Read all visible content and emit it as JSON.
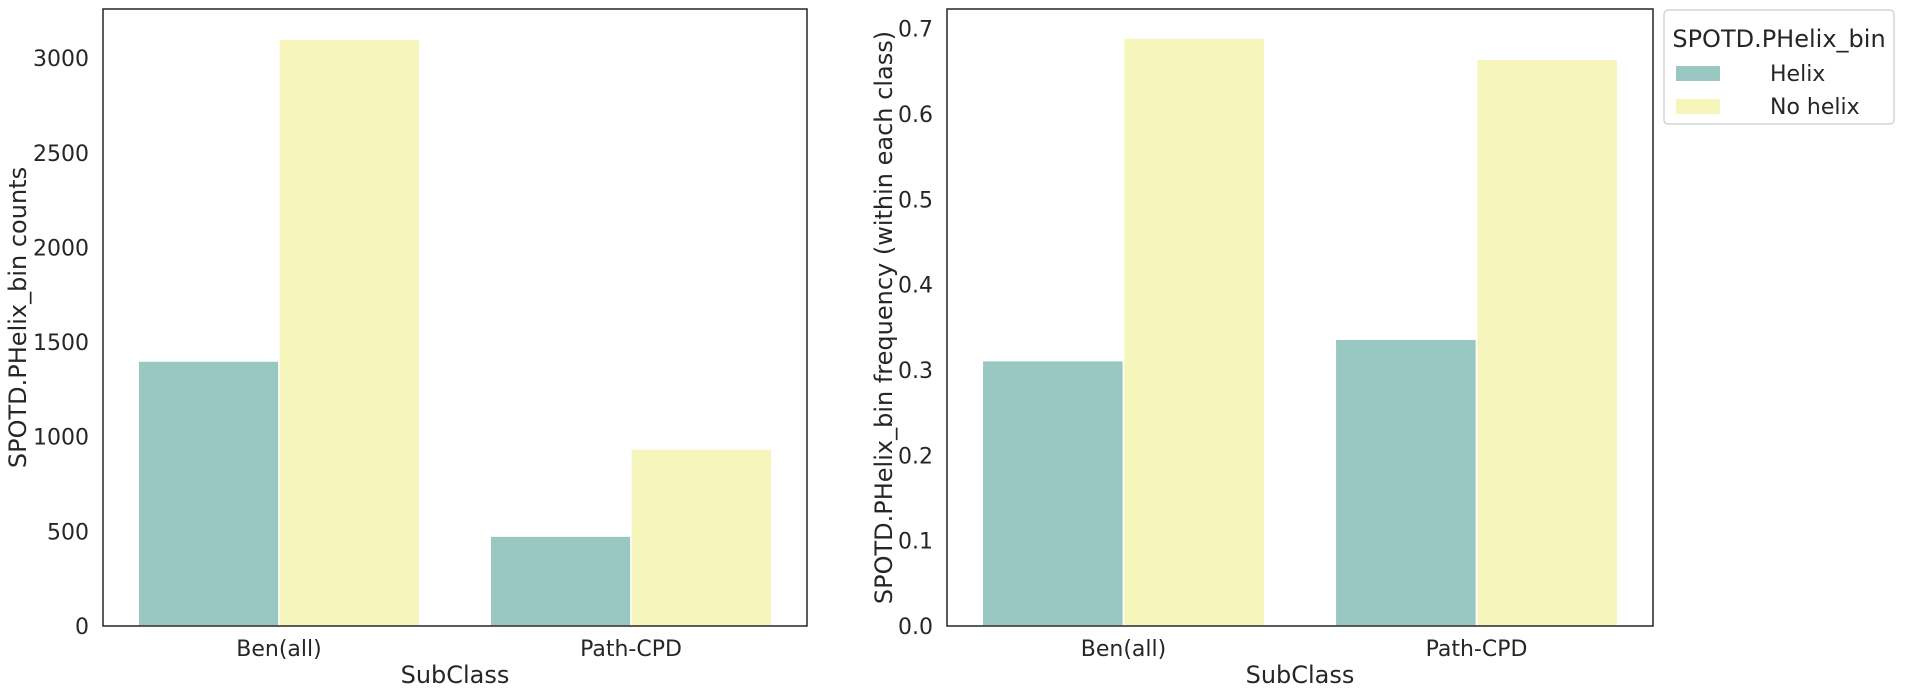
{
  "colors": {
    "series": [
      "#98c8c1",
      "#f5f5bc"
    ],
    "axis": "#262626",
    "bar_edge": "#ffffff"
  },
  "legend": {
    "title": "SPOTD.PHelix_bin",
    "placement": "upper-right-outside",
    "entries": [
      "Helix",
      "No helix"
    ]
  },
  "chart_data": [
    {
      "type": "bar",
      "title": "",
      "xlabel": "SubClass",
      "ylabel": "SPOTD.PHelix_bin counts",
      "categories": [
        "Ben(all)",
        "Path-CPD"
      ],
      "series": [
        {
          "name": "Helix",
          "values": [
            1400,
            475
          ]
        },
        {
          "name": "No helix",
          "values": [
            3100,
            935
          ]
        }
      ],
      "ylim": [
        0,
        3260
      ],
      "yticks": [
        0,
        500,
        1000,
        1500,
        2000,
        2500,
        3000
      ],
      "ytick_labels": [
        "0",
        "500",
        "1000",
        "1500",
        "2000",
        "2500",
        "3000"
      ],
      "grid": false
    },
    {
      "type": "bar",
      "title": "",
      "xlabel": "SubClass",
      "ylabel": "SPOTD.PHelix_bin frequency (within each class)",
      "categories": [
        "Ben(all)",
        "Path-CPD"
      ],
      "series": [
        {
          "name": "Helix",
          "values": [
            0.311,
            0.336
          ]
        },
        {
          "name": "No helix",
          "values": [
            0.689,
            0.664
          ]
        }
      ],
      "ylim": [
        0,
        0.723
      ],
      "yticks": [
        0.0,
        0.1,
        0.2,
        0.3,
        0.4,
        0.5,
        0.6,
        0.7
      ],
      "ytick_labels": [
        "0.0",
        "0.1",
        "0.2",
        "0.3",
        "0.4",
        "0.5",
        "0.6",
        "0.7"
      ],
      "grid": false
    }
  ]
}
